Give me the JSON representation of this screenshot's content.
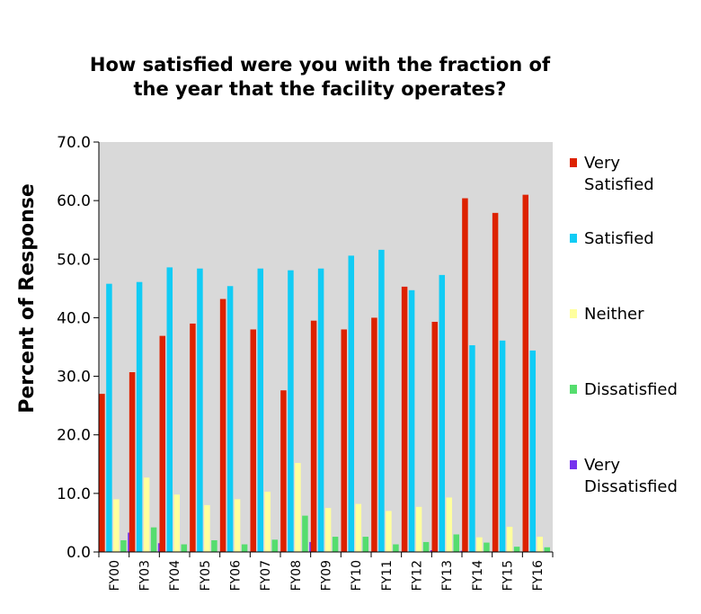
{
  "chart_data": {
    "type": "bar",
    "title": [
      "How satisfied were you with the fraction of",
      "the year that the facility operates?"
    ],
    "xlabel": "",
    "ylabel": "Percent of Response",
    "ylim": [
      0,
      70
    ],
    "yticks": [
      "0.0",
      "10.0",
      "20.0",
      "30.0",
      "40.0",
      "50.0",
      "60.0",
      "70.0"
    ],
    "grid": false,
    "legend_position": "right",
    "categories": [
      "FY00",
      "FY03",
      "FY04",
      "FY05",
      "FY06",
      "FY07",
      "FY08",
      "FY09",
      "FY10",
      "FY11",
      "FY12",
      "FY13",
      "FY14",
      "FY15",
      "FY16"
    ],
    "series": [
      {
        "name": [
          "Very",
          "Satisfied"
        ],
        "color": "#dd2200",
        "values": [
          27.0,
          30.7,
          36.9,
          39.0,
          43.2,
          38.0,
          27.6,
          39.5,
          38.0,
          40.0,
          45.3,
          39.3,
          60.4,
          57.9,
          61.0
        ]
      },
      {
        "name": [
          "Satisfied"
        ],
        "color": "#11ccf5",
        "values": [
          45.8,
          46.1,
          48.6,
          48.4,
          45.4,
          48.4,
          48.1,
          48.4,
          50.6,
          51.6,
          44.7,
          47.3,
          35.3,
          36.1,
          34.4
        ]
      },
      {
        "name": [
          "Neither"
        ],
        "color": "#ffff9e",
        "values": [
          9.0,
          12.7,
          9.8,
          8.0,
          9.0,
          10.3,
          15.2,
          7.5,
          8.2,
          7.0,
          7.7,
          9.3,
          2.5,
          4.3,
          2.6
        ]
      },
      {
        "name": [
          "Dissatisfied"
        ],
        "color": "#55dd6e",
        "values": [
          2.0,
          4.2,
          1.3,
          2.0,
          1.3,
          2.1,
          6.2,
          2.6,
          2.6,
          1.3,
          1.7,
          3.0,
          1.6,
          0.9,
          0.8
        ]
      },
      {
        "name": [
          "Very",
          "Dissatisfied"
        ],
        "color": "#7733ee",
        "values": [
          3.3,
          1.5,
          0.0,
          0.0,
          0.0,
          0.0,
          1.7,
          0.0,
          0.0,
          0.0,
          0.3,
          0.2,
          0.0,
          0.0,
          0.0
        ]
      }
    ],
    "background": "#d9d9d9"
  }
}
